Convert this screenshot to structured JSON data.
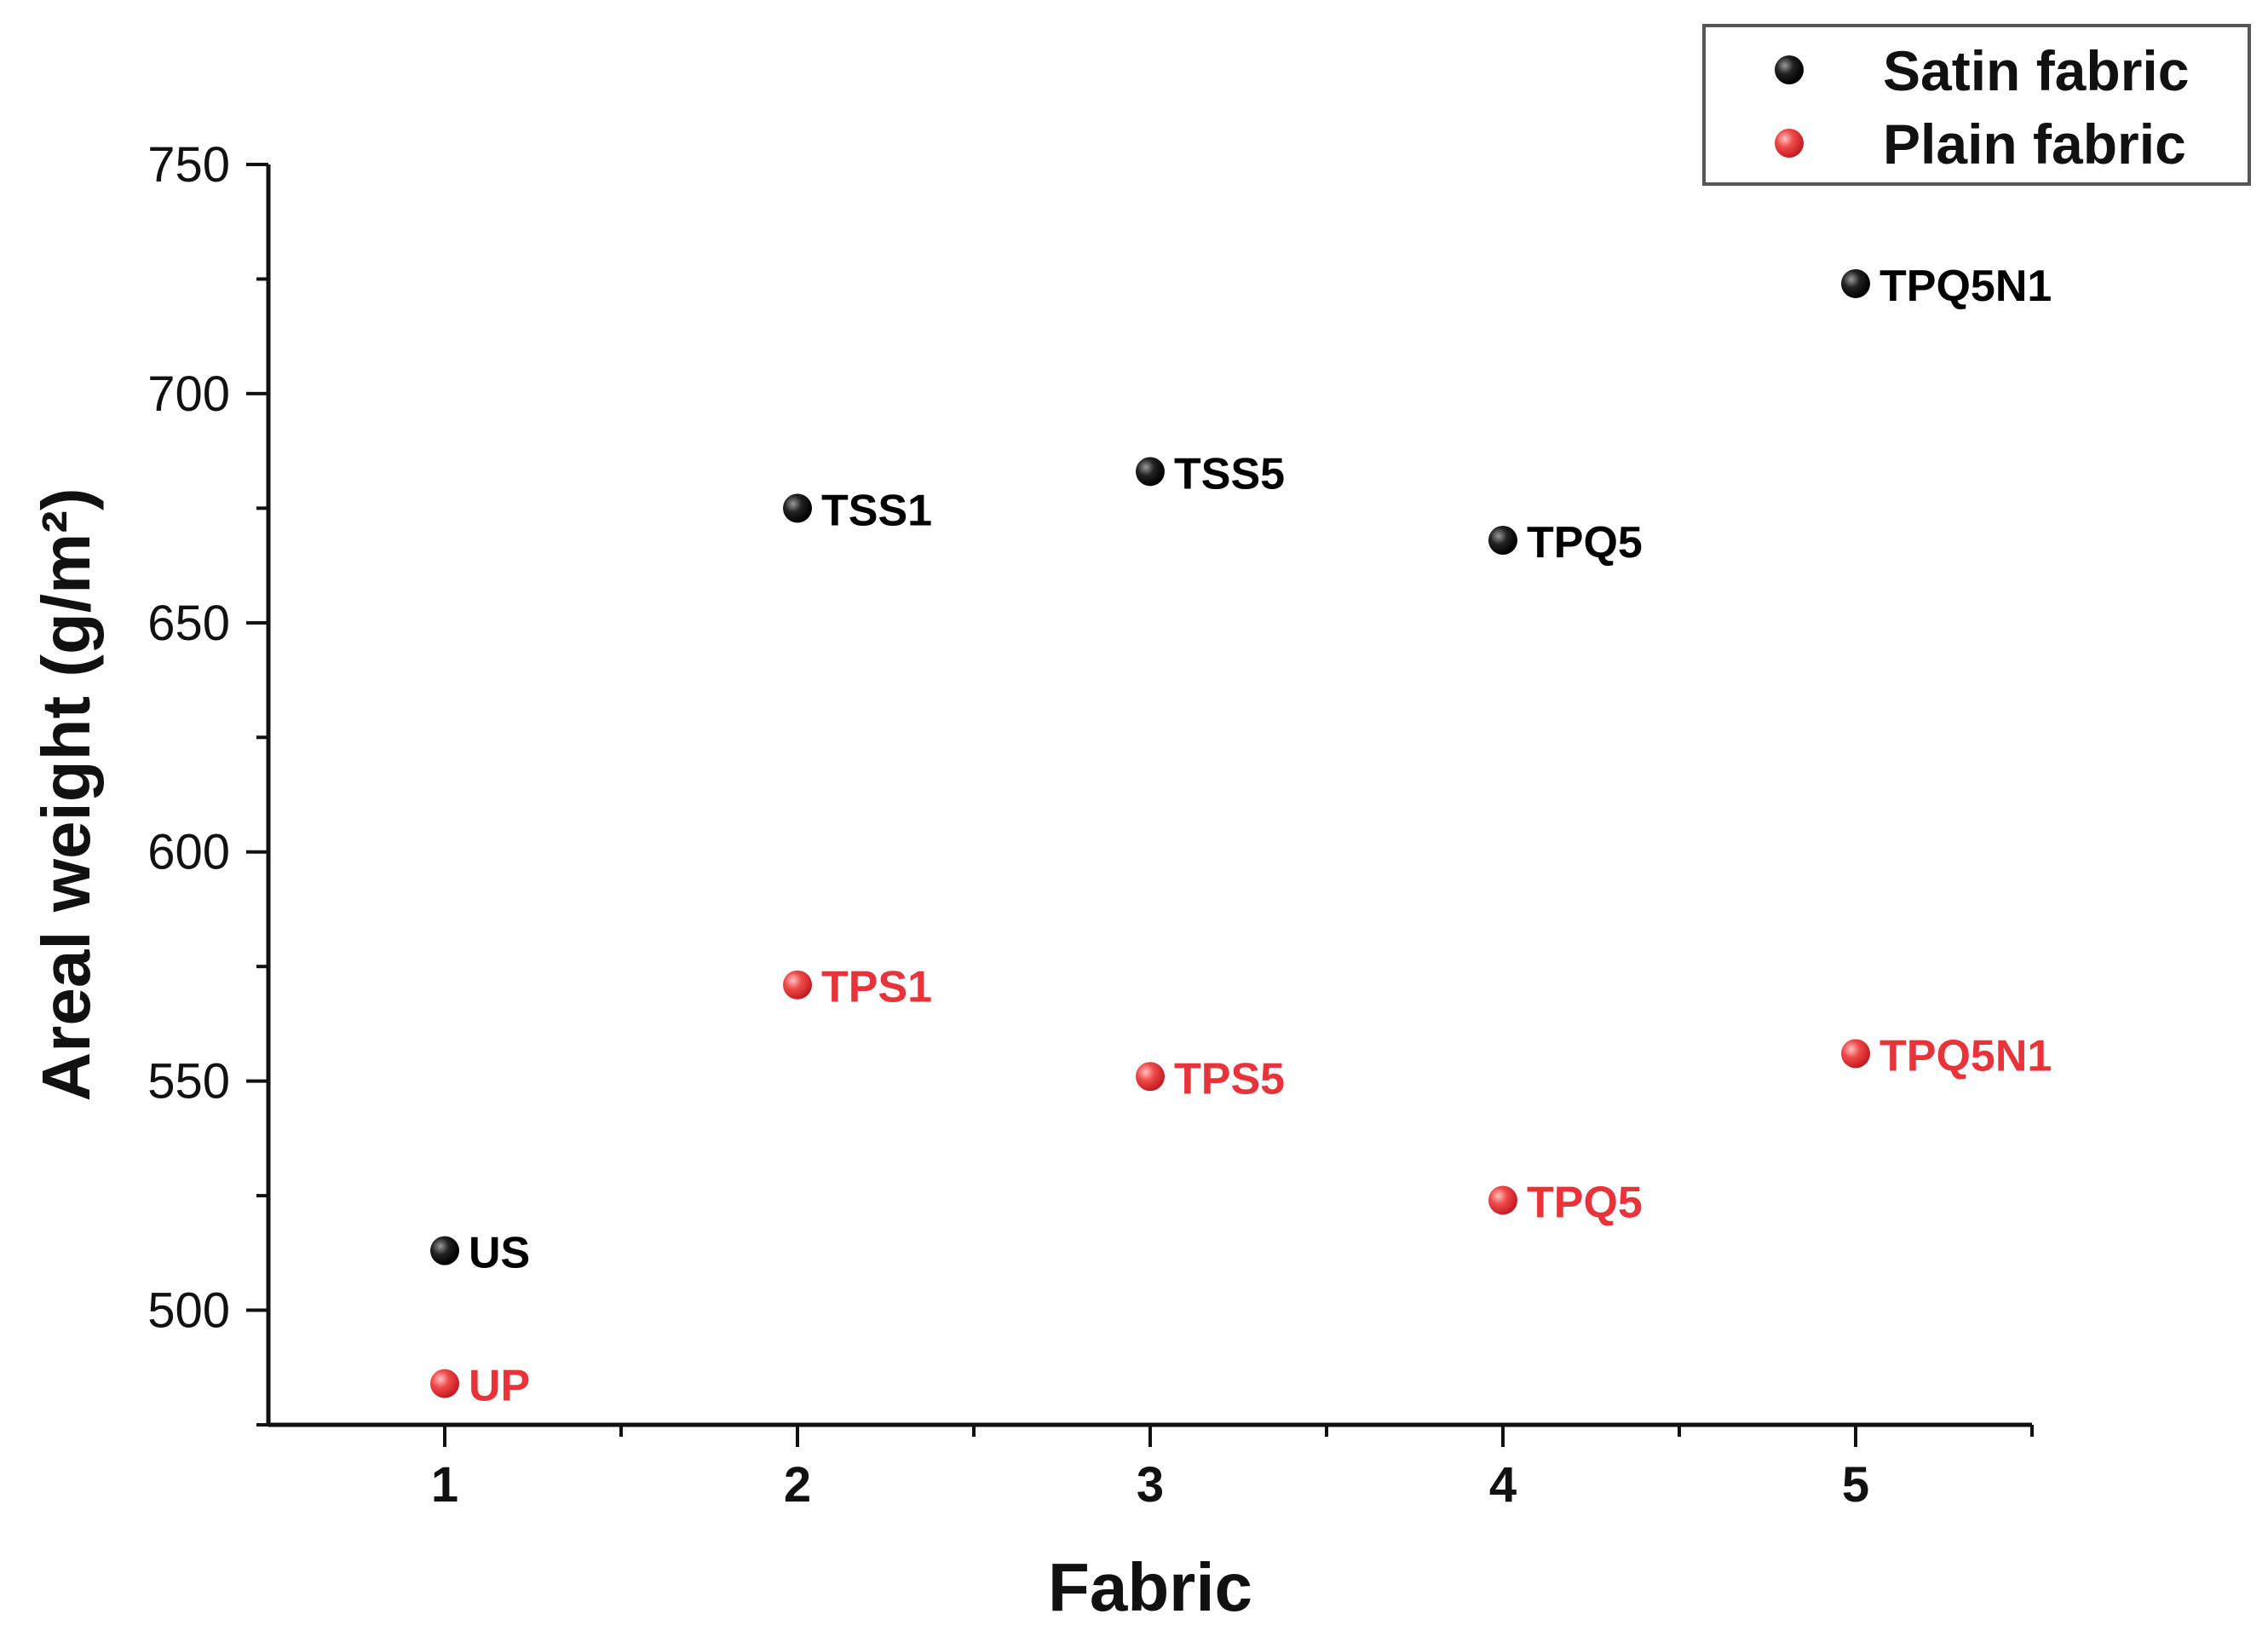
{
  "chart_data": {
    "type": "scatter",
    "title": "",
    "xlabel": "Fabric",
    "ylabel": "Areal weight (g/m²)",
    "xlim": [
      0.5,
      5.5
    ],
    "ylim": [
      475,
      750
    ],
    "x_ticks": [
      "1",
      "2",
      "3",
      "4",
      "5"
    ],
    "y_ticks": [
      "500",
      "550",
      "600",
      "650",
      "700",
      "750"
    ],
    "grid": false,
    "legend_position": "top-right",
    "series": [
      {
        "name": "Satin fabric",
        "color": "#000000",
        "x": [
          1,
          2,
          3,
          4,
          5
        ],
        "y": [
          513,
          675,
          683,
          668,
          724
        ],
        "labels": [
          "US",
          "TSS1",
          "TSS5",
          "TPQ5",
          "TPQ5N1"
        ]
      },
      {
        "name": "Plain fabric",
        "color": "#e8333a",
        "x": [
          1,
          2,
          3,
          4,
          5
        ],
        "y": [
          484,
          571,
          551,
          524,
          556
        ],
        "labels": [
          "UP",
          "TPS1",
          "TPS5",
          "TPQ5",
          "TPQ5N1"
        ]
      }
    ]
  }
}
